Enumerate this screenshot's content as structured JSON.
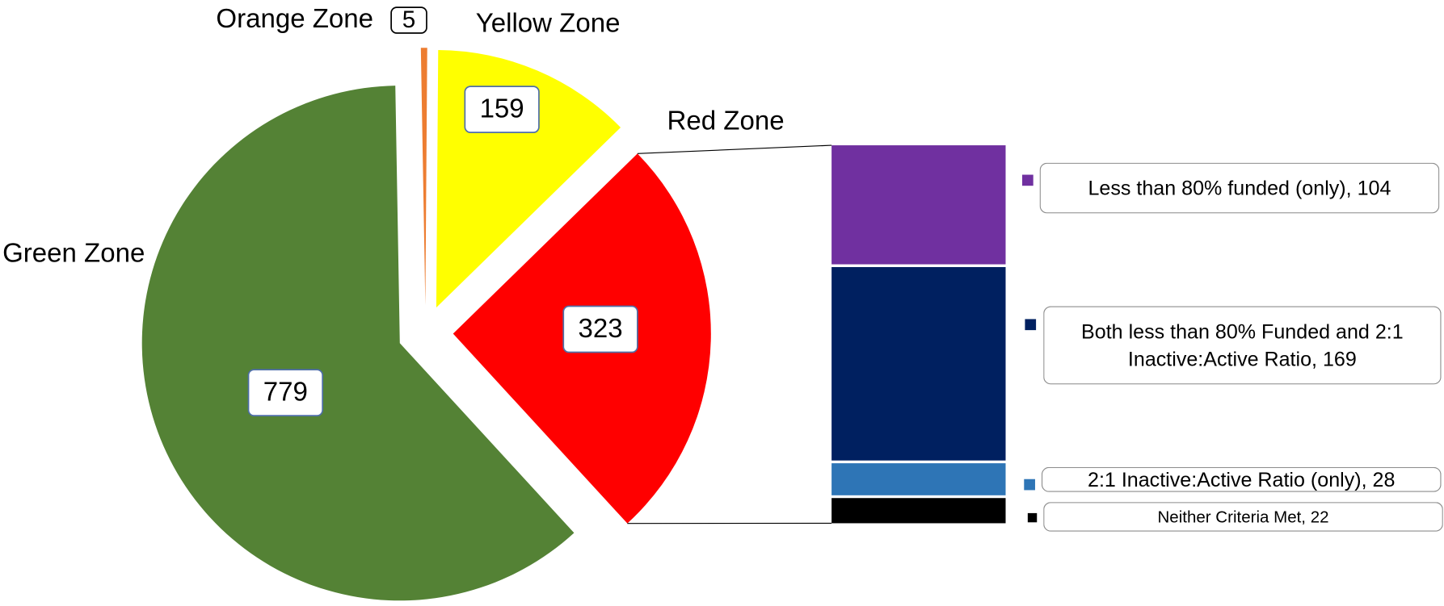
{
  "chart_data": {
    "type": "pie-of-bar",
    "categories": [
      "Orange Zone",
      "Yellow Zone",
      "Red Zone",
      "Green Zone"
    ],
    "values": [
      5,
      159,
      323,
      779
    ],
    "colors": [
      "#ed7d31",
      "#ffff00",
      "#ff0000",
      "#548235"
    ],
    "breakdown": {
      "categories": [
        "Less than 80% funded (only)",
        "Both less than 80% Funded and 2:1 Inactive:Active Ratio",
        "2:1 Inactive:Active Ratio (only)",
        "Neither Criteria Met"
      ],
      "values": [
        104,
        169,
        28,
        22
      ],
      "colors": [
        "#7030a0",
        "#002060",
        "#2e75b6",
        "#000000"
      ]
    }
  }
}
